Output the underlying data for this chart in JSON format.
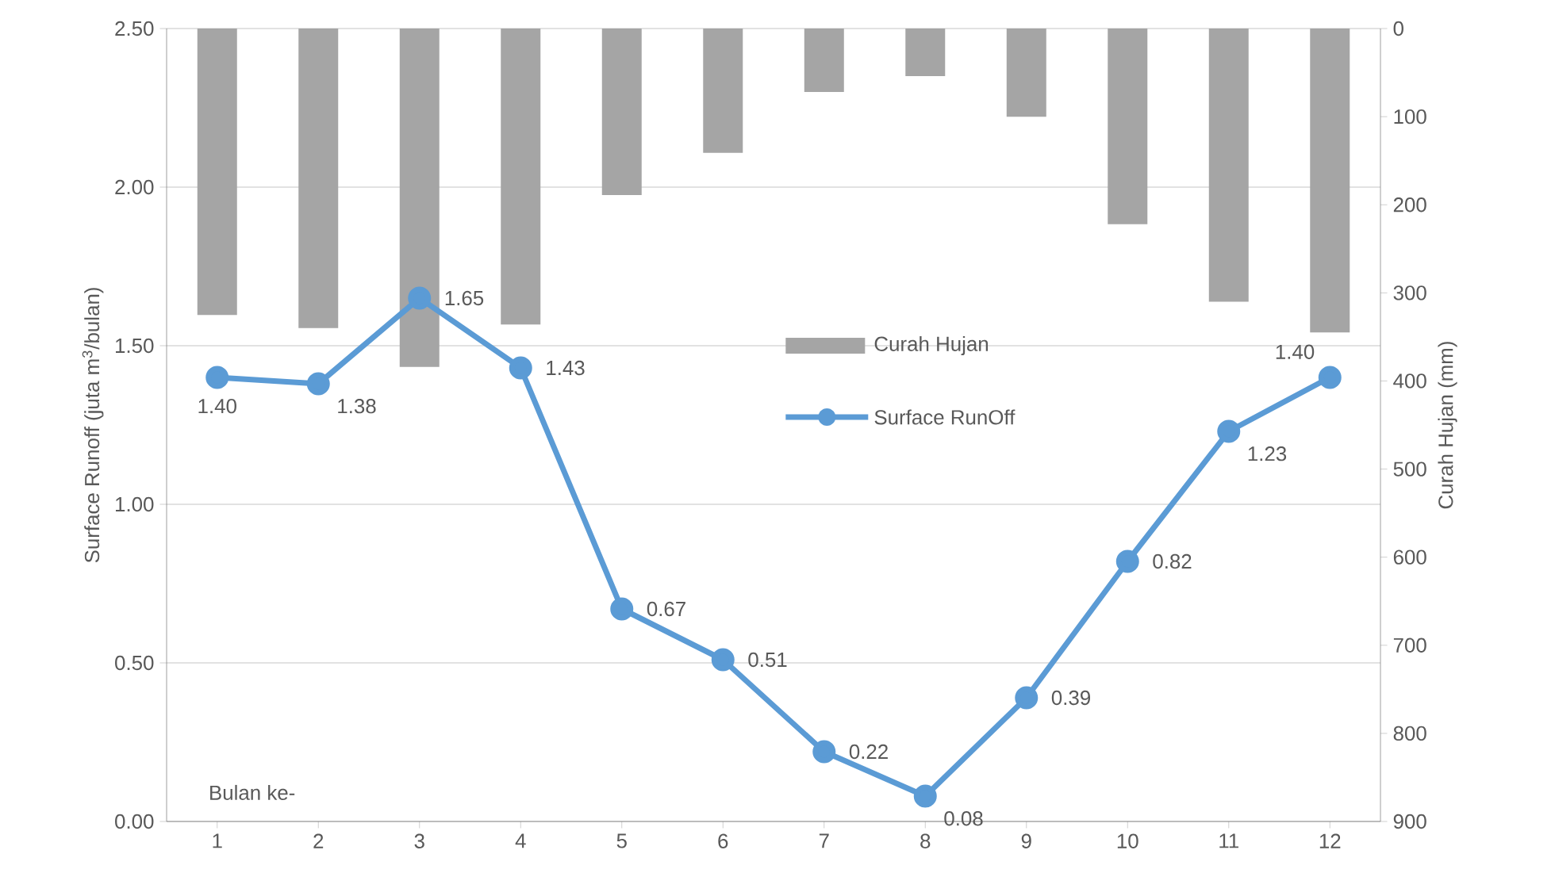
{
  "chart_data": {
    "type": "bar",
    "xlabel": "Bulan ke-",
    "ylabel": "Surface Runoff (juta m$^{3}$/bulan)",
    "y2label": "Curah Hujan (mm)",
    "categories": [
      "1",
      "2",
      "3",
      "4",
      "5",
      "6",
      "7",
      "8",
      "9",
      "10",
      "11",
      "12"
    ],
    "series": [
      {
        "name": "Curah Hujan",
        "axis": "y2",
        "color": "#a5a5a5",
        "values": [
          325,
          340,
          384,
          336,
          189,
          141,
          72,
          54,
          100,
          222,
          310,
          345
        ]
      },
      {
        "name": "Surface RunOff",
        "type": "line",
        "color": "#5b9bd5",
        "values": [
          1.4,
          1.38,
          1.65,
          1.43,
          0.67,
          0.51,
          0.22,
          0.08,
          0.39,
          0.82,
          1.23,
          1.4
        ],
        "value_labels": [
          "1.40",
          "1.38",
          "1.65",
          "1.43",
          "0.67",
          "0.51",
          "0.22",
          "0.08",
          "0.39",
          "0.82",
          "1.23",
          "1.40"
        ]
      }
    ],
    "ylim": [
      0,
      2.5
    ],
    "yticks": [
      {
        "value": 0,
        "label": "0.00"
      },
      {
        "value": 0.5,
        "label": "0.50"
      },
      {
        "value": 1,
        "label": "1.00"
      },
      {
        "value": 1.5,
        "label": "1.50"
      },
      {
        "value": 2,
        "label": "2.00"
      },
      {
        "value": 2.5,
        "label": "2.50"
      }
    ],
    "y2lim": [
      900,
      0
    ],
    "y2ticks": [
      0,
      100,
      200,
      300,
      400,
      500,
      600,
      700,
      800,
      900
    ],
    "grid": "y",
    "legend": "center",
    "marker": "circle"
  }
}
